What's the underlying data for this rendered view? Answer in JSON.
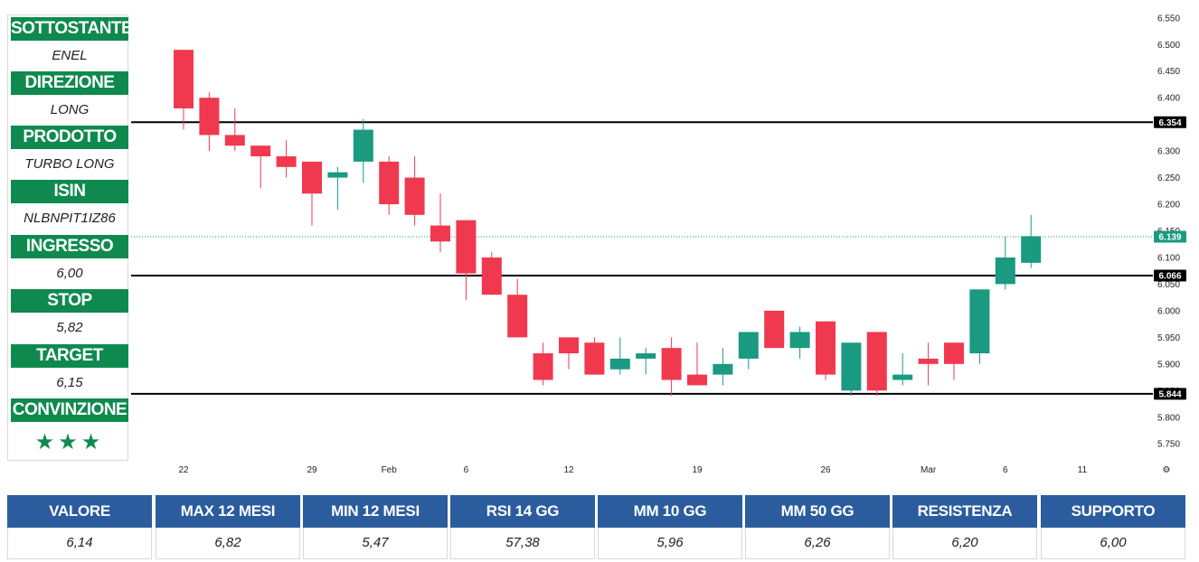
{
  "sidebar": {
    "items": [
      {
        "label": "SOTTOSTANTE",
        "value": "ENEL"
      },
      {
        "label": "DIREZIONE",
        "value": "LONG"
      },
      {
        "label": "PRODOTTO",
        "value": "TURBO LONG"
      },
      {
        "label": "ISIN",
        "value": "NLBNPIT1IZ86"
      },
      {
        "label": "INGRESSO",
        "value": "6,00"
      },
      {
        "label": "STOP",
        "value": "5,82"
      },
      {
        "label": "TARGET",
        "value": "6,15"
      },
      {
        "label": "CONVINZIONE",
        "value": "★★★"
      }
    ]
  },
  "chart_data": {
    "type": "candlestick",
    "ylim": [
      5.73,
      6.57
    ],
    "y_ticks": [
      "6.550",
      "6.500",
      "6.450",
      "6.400",
      "6.350",
      "6.300",
      "6.250",
      "6.200",
      "6.150",
      "6.100",
      "6.050",
      "6.000",
      "5.950",
      "5.900",
      "5.850",
      "5.800",
      "5.750"
    ],
    "x_ticks": [
      {
        "label": "22",
        "index": 0
      },
      {
        "label": "29",
        "index": 5
      },
      {
        "label": "Feb",
        "index": 8
      },
      {
        "label": "6",
        "index": 11
      },
      {
        "label": "12",
        "index": 15
      },
      {
        "label": "19",
        "index": 20
      },
      {
        "label": "26",
        "index": 25
      },
      {
        "label": "Mar",
        "index": 29
      },
      {
        "label": "6",
        "index": 32
      },
      {
        "label": "11",
        "index": 35
      }
    ],
    "x_extent": 38,
    "levels": [
      {
        "value": 6.354,
        "label": "6.354"
      },
      {
        "value": 6.066,
        "label": "6.066"
      },
      {
        "value": 5.844,
        "label": "5.844"
      }
    ],
    "last_price": {
      "value": 6.139,
      "label": "6.139"
    },
    "colors": {
      "up": "#1a9a80",
      "down": "#f0394f",
      "level": "#000000",
      "last": "#1a9a80"
    },
    "candles": [
      {
        "o": 6.49,
        "h": 6.49,
        "l": 6.34,
        "c": 6.38
      },
      {
        "o": 6.4,
        "h": 6.41,
        "l": 6.3,
        "c": 6.33
      },
      {
        "o": 6.33,
        "h": 6.38,
        "l": 6.3,
        "c": 6.31
      },
      {
        "o": 6.31,
        "h": 6.31,
        "l": 6.23,
        "c": 6.29
      },
      {
        "o": 6.29,
        "h": 6.32,
        "l": 6.25,
        "c": 6.27
      },
      {
        "o": 6.28,
        "h": 6.28,
        "l": 6.16,
        "c": 6.22
      },
      {
        "o": 6.25,
        "h": 6.27,
        "l": 6.19,
        "c": 6.26
      },
      {
        "o": 6.28,
        "h": 6.36,
        "l": 6.24,
        "c": 6.34
      },
      {
        "o": 6.28,
        "h": 6.29,
        "l": 6.18,
        "c": 6.2
      },
      {
        "o": 6.25,
        "h": 6.29,
        "l": 6.16,
        "c": 6.18
      },
      {
        "o": 6.16,
        "h": 6.22,
        "l": 6.11,
        "c": 6.13
      },
      {
        "o": 6.17,
        "h": 6.17,
        "l": 6.02,
        "c": 6.07
      },
      {
        "o": 6.1,
        "h": 6.11,
        "l": 6.03,
        "c": 6.03
      },
      {
        "o": 6.03,
        "h": 6.06,
        "l": 5.95,
        "c": 5.95
      },
      {
        "o": 5.92,
        "h": 5.94,
        "l": 5.86,
        "c": 5.87
      },
      {
        "o": 5.95,
        "h": 5.95,
        "l": 5.89,
        "c": 5.92
      },
      {
        "o": 5.94,
        "h": 5.95,
        "l": 5.88,
        "c": 5.88
      },
      {
        "o": 5.89,
        "h": 5.95,
        "l": 5.88,
        "c": 5.91
      },
      {
        "o": 5.91,
        "h": 5.93,
        "l": 5.88,
        "c": 5.92
      },
      {
        "o": 5.93,
        "h": 5.95,
        "l": 5.84,
        "c": 5.87
      },
      {
        "o": 5.88,
        "h": 5.94,
        "l": 5.86,
        "c": 5.86
      },
      {
        "o": 5.88,
        "h": 5.93,
        "l": 5.86,
        "c": 5.9
      },
      {
        "o": 5.91,
        "h": 5.96,
        "l": 5.89,
        "c": 5.96
      },
      {
        "o": 6.0,
        "h": 6.0,
        "l": 5.93,
        "c": 5.93
      },
      {
        "o": 5.93,
        "h": 5.97,
        "l": 5.91,
        "c": 5.96
      },
      {
        "o": 5.98,
        "h": 5.98,
        "l": 5.87,
        "c": 5.88
      },
      {
        "o": 5.85,
        "h": 5.94,
        "l": 5.84,
        "c": 5.94
      },
      {
        "o": 5.96,
        "h": 5.96,
        "l": 5.84,
        "c": 5.85
      },
      {
        "o": 5.87,
        "h": 5.92,
        "l": 5.86,
        "c": 5.88
      },
      {
        "o": 5.91,
        "h": 5.94,
        "l": 5.86,
        "c": 5.9
      },
      {
        "o": 5.94,
        "h": 5.94,
        "l": 5.87,
        "c": 5.9
      },
      {
        "o": 5.92,
        "h": 6.04,
        "l": 5.9,
        "c": 6.04
      },
      {
        "o": 6.05,
        "h": 6.14,
        "l": 6.04,
        "c": 6.1
      },
      {
        "o": 6.09,
        "h": 6.18,
        "l": 6.08,
        "c": 6.14
      }
    ]
  },
  "table": {
    "columns": [
      {
        "header": "VALORE",
        "value": "6,14"
      },
      {
        "header": "MAX 12 MESI",
        "value": "6,82"
      },
      {
        "header": "MIN 12 MESI",
        "value": "5,47"
      },
      {
        "header": "RSI 14 GG",
        "value": "57,38"
      },
      {
        "header": "MM 10 GG",
        "value": "5,96"
      },
      {
        "header": "MM 50 GG",
        "value": "6,26"
      },
      {
        "header": "RESISTENZA",
        "value": "6,20"
      },
      {
        "header": "SUPPORTO",
        "value": "6,00"
      }
    ]
  }
}
